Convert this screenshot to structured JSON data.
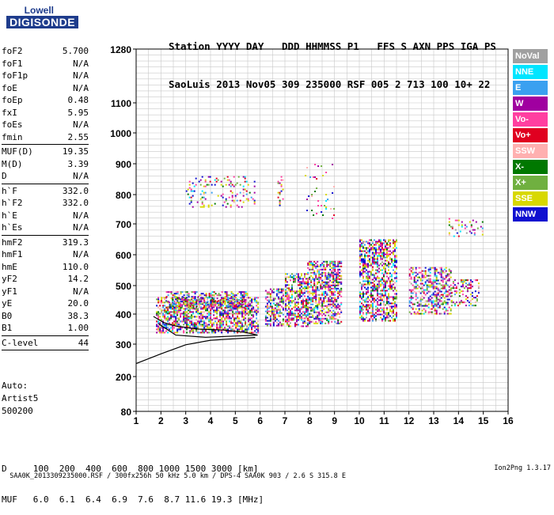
{
  "logo": {
    "line1": "Lowell",
    "line2": "DIGISONDE"
  },
  "header": {
    "line1": "Station YYYY DAY   DDD HHMMSS P1   FFS S AXN PPS IGA PS",
    "line2": "SaoLuis 2013 Nov05 309 235000 RSF 005 2 713 100 10+ 22"
  },
  "params": [
    {
      "group": [
        {
          "k": "foF2",
          "v": "5.700"
        },
        {
          "k": "foF1",
          "v": "N/A"
        },
        {
          "k": "foF1p",
          "v": "N/A"
        },
        {
          "k": "foE",
          "v": "N/A"
        },
        {
          "k": "foEp",
          "v": "0.48"
        },
        {
          "k": "fxI",
          "v": "5.95"
        },
        {
          "k": "foEs",
          "v": "N/A"
        },
        {
          "k": "fmin",
          "v": "2.55"
        }
      ]
    },
    {
      "group": [
        {
          "k": "MUF(D)",
          "v": "19.35"
        },
        {
          "k": "M(D)",
          "v": "3.39"
        },
        {
          "k": "D",
          "v": "N/A"
        }
      ]
    },
    {
      "group": [
        {
          "k": "h`F",
          "v": "332.0"
        },
        {
          "k": "h`F2",
          "v": "332.0"
        },
        {
          "k": "h`E",
          "v": "N/A"
        },
        {
          "k": "h`Es",
          "v": "N/A"
        }
      ]
    },
    {
      "group": [
        {
          "k": "hmF2",
          "v": "319.3"
        },
        {
          "k": "hmF1",
          "v": "N/A"
        },
        {
          "k": "hmE",
          "v": "110.0"
        },
        {
          "k": "yF2",
          "v": "14.2"
        },
        {
          "k": "yF1",
          "v": "N/A"
        },
        {
          "k": "yE",
          "v": "20.0"
        },
        {
          "k": "B0",
          "v": "38.3"
        },
        {
          "k": "B1",
          "v": "1.00"
        }
      ]
    },
    {
      "group": [
        {
          "k": "C-level",
          "v": "44"
        }
      ]
    }
  ],
  "auto": [
    "Auto:",
    "Artist5",
    "500200"
  ],
  "dmuf": {
    "d_line": "D     100  200  400  600  800 1000 1500 3000 [km]",
    "muf_line": "MUF   6.0  6.1  6.4  6.9  7.6  8.7 11.6 19.3 [MHz]"
  },
  "footer": {
    "left": "SAA0K_2013309235000.RSF / 300fx256h 50 kHz 5.0 km / DPS-4 SAA0K 903 / 2.6 S 315.8 E",
    "right": "Ion2Png 1.3.17"
  },
  "legend": [
    {
      "label": "NoVal",
      "color": "#a0a0a0"
    },
    {
      "label": "NNE",
      "color": "#00e5ff"
    },
    {
      "label": "E",
      "color": "#3aa0f0"
    },
    {
      "label": "W",
      "color": "#a000a0"
    },
    {
      "label": "Vo-",
      "color": "#ff3fa0"
    },
    {
      "label": "Vo+",
      "color": "#e00020"
    },
    {
      "label": "SSW",
      "color": "#ffb0b0"
    },
    {
      "label": "X-",
      "color": "#007800"
    },
    {
      "label": "X+",
      "color": "#70b040"
    },
    {
      "label": "SSE",
      "color": "#d8d800"
    },
    {
      "label": "NNW",
      "color": "#1010d0"
    }
  ],
  "chart_data": {
    "type": "scatter",
    "title": "",
    "xlabel": "",
    "ylabel": "",
    "xlim": [
      1,
      16
    ],
    "ylim": [
      80,
      1280
    ],
    "x_ticks": [
      1,
      2,
      3,
      4,
      5,
      6,
      7,
      8,
      9,
      10,
      11,
      12,
      13,
      14,
      15,
      16
    ],
    "y_ticks": [
      80,
      200,
      300,
      400,
      500,
      600,
      700,
      800,
      900,
      1000,
      1100,
      1280
    ],
    "y_scale": "nonlinear (ionogram virtual height, compressed)",
    "grid": true,
    "echo_regions": [
      {
        "x": [
          1.8,
          5.9
        ],
        "y": [
          340,
          460
        ],
        "density": 1.0
      },
      {
        "x": [
          2.2,
          5.5
        ],
        "y": [
          420,
          480
        ],
        "density": 0.8
      },
      {
        "x": [
          6.2,
          6.95
        ],
        "y": [
          360,
          490
        ],
        "density": 0.9
      },
      {
        "x": [
          7.0,
          7.9
        ],
        "y": [
          360,
          540
        ],
        "density": 0.9
      },
      {
        "x": [
          7.9,
          9.3
        ],
        "y": [
          370,
          580
        ],
        "density": 0.95
      },
      {
        "x": [
          10.0,
          11.5
        ],
        "y": [
          380,
          650
        ],
        "density": 0.9
      },
      {
        "x": [
          12.0,
          13.7
        ],
        "y": [
          400,
          560
        ],
        "density": 0.75
      },
      {
        "x": [
          13.7,
          14.8
        ],
        "y": [
          430,
          520
        ],
        "density": 0.5
      },
      {
        "x": [
          3.0,
          5.8
        ],
        "y": [
          760,
          860
        ],
        "density": 0.25
      },
      {
        "x": [
          6.7,
          6.95
        ],
        "y": [
          760,
          860
        ],
        "density": 0.3
      },
      {
        "x": [
          7.8,
          9.0
        ],
        "y": [
          720,
          900
        ],
        "density": 0.1
      },
      {
        "x": [
          13.6,
          15.0
        ],
        "y": [
          660,
          720
        ],
        "density": 0.25
      }
    ],
    "traces": [
      {
        "name": "profile",
        "points": [
          [
            1.0,
            240
          ],
          [
            2.0,
            270
          ],
          [
            3.0,
            298
          ],
          [
            4.0,
            313
          ],
          [
            5.0,
            318
          ],
          [
            5.8,
            322
          ]
        ]
      },
      {
        "name": "trace",
        "points": [
          [
            1.7,
            392
          ],
          [
            2.1,
            372
          ],
          [
            2.6,
            360
          ],
          [
            3.5,
            350
          ],
          [
            4.5,
            347
          ],
          [
            5.4,
            339
          ],
          [
            5.9,
            330
          ],
          [
            3.8,
            323
          ],
          [
            2.6,
            330
          ],
          [
            1.9,
            368
          ]
        ]
      }
    ]
  }
}
